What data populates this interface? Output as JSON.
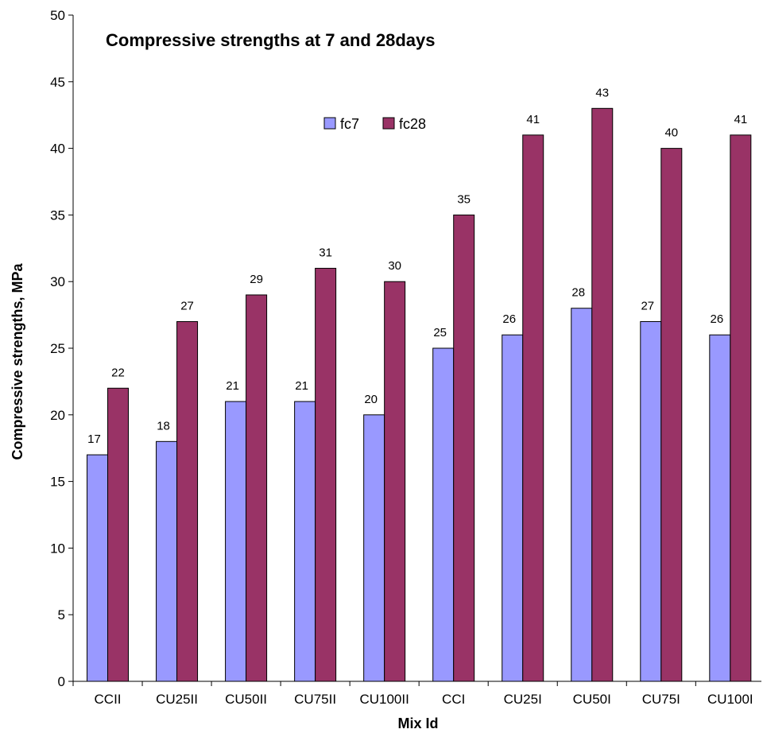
{
  "chart_data": {
    "type": "bar",
    "title": "Compressive strengths at 7 and 28days",
    "xlabel": "Mix Id",
    "ylabel": "Compressive strengths, MPa",
    "categories": [
      "CCII",
      "CU25II",
      "CU50II",
      "CU75II",
      "CU100II",
      "CCI",
      "CU25I",
      "CU50I",
      "CU75I",
      "CU100I"
    ],
    "series": [
      {
        "name": "fc7",
        "color": "#9999ff",
        "values": [
          17,
          18,
          21,
          21,
          20,
          25,
          26,
          28,
          27,
          26
        ]
      },
      {
        "name": "fc28",
        "color": "#993366",
        "values": [
          22,
          27,
          29,
          31,
          30,
          35,
          41,
          43,
          40,
          41
        ]
      }
    ],
    "ylim": [
      0,
      50
    ],
    "yticks": [
      0,
      5,
      10,
      15,
      20,
      25,
      30,
      35,
      40,
      45,
      50
    ],
    "grid": false,
    "legend": "top-center",
    "data_labels": true
  }
}
